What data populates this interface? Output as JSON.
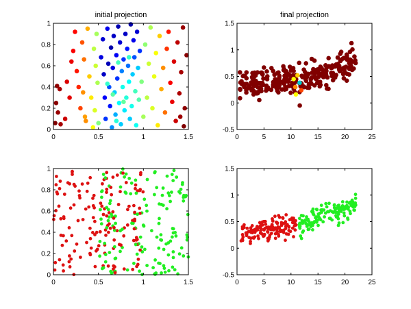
{
  "colors": {
    "axis": "#000000",
    "jet_stops": [
      "#00008f",
      "#0000ff",
      "#00ffff",
      "#80ff80",
      "#ffff00",
      "#ff0000",
      "#800000"
    ],
    "dark_red": "#800000",
    "red": "#dd1111",
    "green": "#22ee22"
  },
  "chart_data": [
    {
      "id": "top-left",
      "type": "scatter",
      "title": "initial projection",
      "xlim": [
        0,
        1.5
      ],
      "ylim": [
        0,
        1
      ],
      "xticks": [
        "0",
        "0.5",
        "1",
        "1.5"
      ],
      "yticks": [
        "0",
        "0.2",
        "0.4",
        "0.6",
        "0.8",
        "1"
      ],
      "xtick_values": [
        0,
        0.5,
        1,
        1.5
      ],
      "ytick_values": [
        0,
        0.2,
        0.4,
        0.6,
        0.8,
        1
      ],
      "marker": "filled-circle-large",
      "color_encoding": "jet colormap by original position",
      "points": [
        [
          0.02,
          0.06,
          1.0
        ],
        [
          0.04,
          0.41,
          0.98
        ],
        [
          0.05,
          0.16,
          0.97
        ],
        [
          0.03,
          0.25,
          0.99
        ],
        [
          0.08,
          0.05,
          0.95
        ],
        [
          0.07,
          0.38,
          0.95
        ],
        [
          0.13,
          0.1,
          0.9
        ],
        [
          0.15,
          0.45,
          0.88
        ],
        [
          0.18,
          0.3,
          0.87
        ],
        [
          0.2,
          0.64,
          0.86
        ],
        [
          0.22,
          0.74,
          0.84
        ],
        [
          0.24,
          0.92,
          0.83
        ],
        [
          0.26,
          0.55,
          0.82
        ],
        [
          0.28,
          0.4,
          0.81
        ],
        [
          0.3,
          0.2,
          0.79
        ],
        [
          0.32,
          0.82,
          0.78
        ],
        [
          0.34,
          0.66,
          0.76
        ],
        [
          0.36,
          0.08,
          0.74
        ],
        [
          0.38,
          0.95,
          0.72
        ],
        [
          0.4,
          0.5,
          0.7
        ],
        [
          0.42,
          0.3,
          0.68
        ],
        [
          0.44,
          0.02,
          0.66
        ],
        [
          0.35,
          0.12,
          0.73
        ],
        [
          0.33,
          0.35,
          0.74
        ],
        [
          0.45,
          0.76,
          0.58
        ],
        [
          0.47,
          0.6,
          0.6
        ],
        [
          0.48,
          0.9,
          0.55
        ],
        [
          0.46,
          0.18,
          0.62
        ],
        [
          0.49,
          0.44,
          0.56
        ],
        [
          0.5,
          0.06,
          0.5
        ],
        [
          0.53,
          0.68,
          0.12
        ],
        [
          0.55,
          0.85,
          0.1
        ],
        [
          0.56,
          0.52,
          0.08
        ],
        [
          0.57,
          0.3,
          0.16
        ],
        [
          0.58,
          0.1,
          0.2
        ],
        [
          0.6,
          0.95,
          0.14
        ],
        [
          0.61,
          0.62,
          0.06
        ],
        [
          0.62,
          0.4,
          0.22
        ],
        [
          0.63,
          0.22,
          0.18
        ],
        [
          0.64,
          0.77,
          0.04
        ],
        [
          0.65,
          0.02,
          0.26
        ],
        [
          0.66,
          0.58,
          0.12
        ],
        [
          0.67,
          0.88,
          0.08
        ],
        [
          0.68,
          0.35,
          0.3
        ],
        [
          0.69,
          0.14,
          0.28
        ],
        [
          0.7,
          0.7,
          0.15
        ],
        [
          0.71,
          0.48,
          0.2
        ],
        [
          0.72,
          0.97,
          0.05
        ],
        [
          0.73,
          0.25,
          0.34
        ],
        [
          0.74,
          0.82,
          0.1
        ],
        [
          0.75,
          0.05,
          0.3
        ],
        [
          0.76,
          0.55,
          0.25
        ],
        [
          0.77,
          0.4,
          0.36
        ],
        [
          0.78,
          0.66,
          0.2
        ],
        [
          0.79,
          0.18,
          0.32
        ],
        [
          0.8,
          0.9,
          0.08
        ],
        [
          0.81,
          0.3,
          0.38
        ],
        [
          0.82,
          0.76,
          0.18
        ],
        [
          0.83,
          0.6,
          0.24
        ],
        [
          0.84,
          0.45,
          0.34
        ],
        [
          0.85,
          0.1,
          0.3
        ],
        [
          0.86,
          0.99,
          0.04
        ],
        [
          0.87,
          0.22,
          0.36
        ],
        [
          0.88,
          0.52,
          0.3
        ],
        [
          0.89,
          0.84,
          0.14
        ],
        [
          0.9,
          0.68,
          0.22
        ],
        [
          0.91,
          0.36,
          0.42
        ],
        [
          0.92,
          0.04,
          0.35
        ],
        [
          0.93,
          0.92,
          0.1
        ],
        [
          0.94,
          0.58,
          0.3
        ],
        [
          0.95,
          0.28,
          0.44
        ],
        [
          0.96,
          0.74,
          0.2
        ],
        [
          0.6,
          0.43,
          0.4
        ],
        [
          0.66,
          0.33,
          0.45
        ],
        [
          0.72,
          0.63,
          0.42
        ],
        [
          0.78,
          0.26,
          0.46
        ],
        [
          0.84,
          0.68,
          0.4
        ],
        [
          0.7,
          0.08,
          0.38
        ],
        [
          0.98,
          0.45,
          0.5
        ],
        [
          1.0,
          0.12,
          0.55
        ],
        [
          1.02,
          0.8,
          0.52
        ],
        [
          1.04,
          0.3,
          0.58
        ],
        [
          1.06,
          0.62,
          0.6
        ],
        [
          1.08,
          0.96,
          0.56
        ],
        [
          1.1,
          0.2,
          0.62
        ],
        [
          1.12,
          0.5,
          0.64
        ],
        [
          1.14,
          0.72,
          0.66
        ],
        [
          1.16,
          0.04,
          0.68
        ],
        [
          1.18,
          0.88,
          0.7
        ],
        [
          1.2,
          0.38,
          0.72
        ],
        [
          1.22,
          0.58,
          0.74
        ],
        [
          1.24,
          0.16,
          0.76
        ],
        [
          1.26,
          0.76,
          0.8
        ],
        [
          1.28,
          0.92,
          0.82
        ],
        [
          1.3,
          0.44,
          0.84
        ],
        [
          1.32,
          0.26,
          0.86
        ],
        [
          1.34,
          0.64,
          0.88
        ],
        [
          1.36,
          0.08,
          0.9
        ],
        [
          1.38,
          0.82,
          0.92
        ],
        [
          1.4,
          0.34,
          0.94
        ],
        [
          1.42,
          0.54,
          0.95
        ],
        [
          1.44,
          0.96,
          0.97
        ],
        [
          1.46,
          0.2,
          0.98
        ],
        [
          1.48,
          0.7,
          0.99
        ],
        [
          1.45,
          0.03,
          1.0
        ],
        [
          1.41,
          0.12,
          0.96
        ]
      ]
    },
    {
      "id": "top-right",
      "type": "scatter",
      "title": "final projection",
      "xlim": [
        0,
        25
      ],
      "ylim": [
        -0.5,
        1.5
      ],
      "xticks": [
        "0",
        "5",
        "10",
        "15",
        "20",
        "25"
      ],
      "yticks": [
        "-0.5",
        "0",
        "0.5",
        "1",
        "1.5"
      ],
      "xtick_values": [
        0,
        5,
        10,
        15,
        20,
        25
      ],
      "ytick_values": [
        -0.5,
        0,
        0.5,
        1,
        1.5
      ],
      "marker": "filled-circle-large",
      "color_encoding": "mostly dark red",
      "clusters": [
        {
          "x_range": [
            0.5,
            11
          ],
          "y_center": [
            0.3,
            0.5
          ],
          "spread": 0.13,
          "count": 140,
          "color": "dark_red"
        },
        {
          "x_range": [
            11.5,
            22
          ],
          "y_center": [
            0.4,
            0.78
          ],
          "spread": 0.13,
          "count": 140,
          "color": "dark_red"
        }
      ],
      "accent_points": [
        [
          10.5,
          0.45,
          "#ffff00"
        ],
        [
          10.8,
          0.3,
          "#ff8800"
        ],
        [
          11.2,
          0.52,
          "#ffcc00"
        ],
        [
          11.6,
          0.38,
          "#00cccc"
        ],
        [
          10.9,
          0.16,
          "#ffff00"
        ],
        [
          11.9,
          0.24,
          "#ff4400"
        ]
      ]
    },
    {
      "id": "bottom-left",
      "type": "scatter",
      "title": "",
      "xlim": [
        0,
        1.5
      ],
      "ylim": [
        0,
        1
      ],
      "xticks": [
        "0",
        "0.5",
        "1",
        "1.5"
      ],
      "yticks": [
        "0",
        "0.2",
        "0.4",
        "0.6",
        "0.8",
        "1"
      ],
      "xtick_values": [
        0,
        0.5,
        1,
        1.5
      ],
      "ytick_values": [
        0,
        0.2,
        0.4,
        0.6,
        0.8,
        1
      ],
      "marker": "filled-circle-small",
      "color_encoding": "two classes: red and green",
      "red_region": {
        "x_range": [
          0.0,
          1.0
        ],
        "count": 150
      },
      "green_region": {
        "x_range": [
          0.5,
          1.5
        ],
        "count": 150
      }
    },
    {
      "id": "bottom-right",
      "type": "scatter",
      "title": "",
      "xlim": [
        0,
        25
      ],
      "ylim": [
        -0.5,
        1.5
      ],
      "xticks": [
        "0",
        "5",
        "10",
        "15",
        "20",
        "25"
      ],
      "yticks": [
        "-0.5",
        "0",
        "0.5",
        "1",
        "1.5"
      ],
      "xtick_values": [
        0,
        5,
        10,
        15,
        20,
        25
      ],
      "ytick_values": [
        -0.5,
        0,
        0.5,
        1,
        1.5
      ],
      "marker": "filled-circle-small",
      "clusters": [
        {
          "x_range": [
            0.5,
            11
          ],
          "y_center": [
            0.25,
            0.45
          ],
          "spread": 0.1,
          "count": 140,
          "color": "red"
        },
        {
          "x_range": [
            11.5,
            22
          ],
          "y_center": [
            0.45,
            0.8
          ],
          "spread": 0.1,
          "count": 140,
          "color": "green"
        }
      ]
    }
  ]
}
